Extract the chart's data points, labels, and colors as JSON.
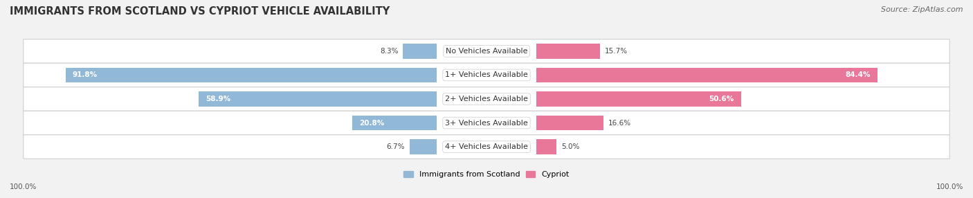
{
  "title": "IMMIGRANTS FROM SCOTLAND VS CYPRIOT VEHICLE AVAILABILITY",
  "source": "Source: ZipAtlas.com",
  "categories": [
    "No Vehicles Available",
    "1+ Vehicles Available",
    "2+ Vehicles Available",
    "3+ Vehicles Available",
    "4+ Vehicles Available"
  ],
  "scotland_values": [
    8.3,
    91.8,
    58.9,
    20.8,
    6.7
  ],
  "cypriot_values": [
    15.7,
    84.4,
    50.6,
    16.6,
    5.0
  ],
  "scotland_color": "#92b8d8",
  "cypriot_color": "#e8779a",
  "scotland_label": "Immigrants from Scotland",
  "cypriot_label": "Cypriot",
  "bar_height": 0.62,
  "background_color": "#f2f2f2",
  "title_fontsize": 10.5,
  "source_fontsize": 8,
  "label_fontsize": 8,
  "value_fontsize": 7.5,
  "axis_max": 100.0,
  "footer_label": "100.0%",
  "inside_threshold": 20
}
